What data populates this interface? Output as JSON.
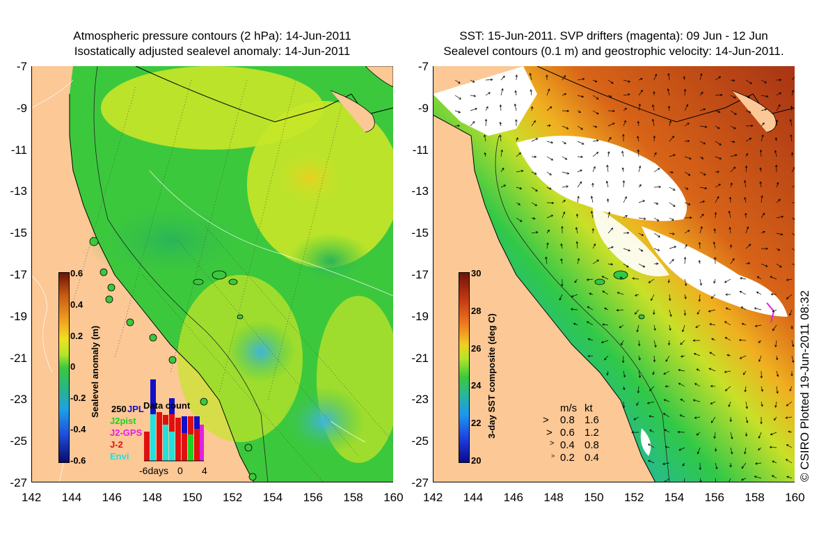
{
  "left_panel": {
    "title_line1": "Atmospheric pressure contours (2 hPa): 14-Jun-2011",
    "title_line2": "Isostatically adjusted sealevel anomaly: 14-Jun-2011",
    "colorbar": {
      "label": "Sealevel anomaly (m)",
      "ticks": [
        "0.6",
        "0.4",
        "0.2",
        "0",
        "-0.2",
        "-0.4",
        "-0.6"
      ]
    },
    "data_count": {
      "title": "Data count",
      "max_label": "250",
      "x_labels": [
        "-6days",
        "0",
        "4"
      ],
      "legend": [
        {
          "name": "JPL",
          "color": "#1010c8"
        },
        {
          "name": "J2pist",
          "color": "#20d020"
        },
        {
          "name": "J2-GPS",
          "color": "#e020e0"
        },
        {
          "name": "J-2",
          "color": "#e01010"
        },
        {
          "name": "Envi",
          "color": "#20e0e0"
        }
      ]
    }
  },
  "right_panel": {
    "title_line1": "SST: 15-Jun-2011. SVP drifters (magenta): 09 Jun - 12 Jun",
    "title_line2": "Sealevel contours (0.1 m) and geostrophic velocity: 14-Jun-2011.",
    "colorbar": {
      "label": "3-day SST composite (deg C)",
      "ticks": [
        "30",
        "28",
        "26",
        "24",
        "22",
        "20"
      ]
    },
    "velocity_key": {
      "header_ms": "m/s",
      "header_kt": "kt",
      "rows": [
        {
          "ms": "0.8",
          "kt": "1.6"
        },
        {
          "ms": "0.6",
          "kt": "1.2"
        },
        {
          "ms": "0.4",
          "kt": "0.8"
        },
        {
          "ms": "0.2",
          "kt": "0.4"
        }
      ]
    }
  },
  "axes": {
    "latitude_ticks": [
      "-7",
      "-9",
      "-11",
      "-13",
      "-15",
      "-17",
      "-19",
      "-21",
      "-23",
      "-25",
      "-27"
    ],
    "longitude_ticks": [
      "142",
      "144",
      "146",
      "148",
      "150",
      "152",
      "154",
      "156",
      "158",
      "160"
    ]
  },
  "credit": "© CSIRO Plotted 19-Jun-2011 08:32",
  "colors": {
    "land": "#fbc896",
    "ocean_green": "#3cc83c",
    "ocean_yellow": "#c8e628",
    "sst_red": "#b43c14",
    "sst_blue": "#1e8cf0"
  }
}
